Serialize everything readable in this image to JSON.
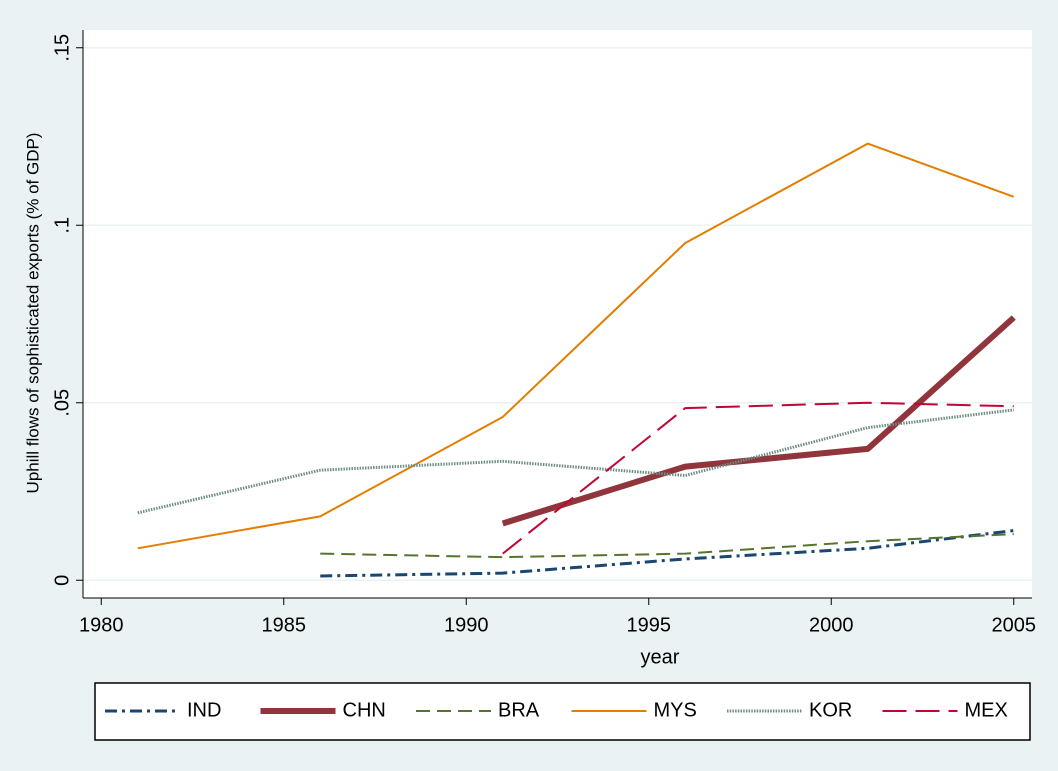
{
  "chart_data": {
    "type": "line",
    "y_label": "Uphill flows of sophisticated exports (% of GDP)",
    "x_label": "year",
    "x": [
      1981,
      1986,
      1991,
      1996,
      2001,
      2005
    ],
    "series": [
      {
        "name": "IND",
        "color": "#1a476f",
        "values": [
          null,
          0.0012,
          0.002,
          0.006,
          0.009,
          0.014
        ]
      },
      {
        "name": "CHN",
        "color": "#90353b",
        "values": [
          null,
          null,
          0.016,
          0.032,
          0.037,
          0.074
        ]
      },
      {
        "name": "BRA",
        "color": "#55752f",
        "values": [
          null,
          0.0075,
          0.0065,
          0.0075,
          0.011,
          0.013
        ]
      },
      {
        "name": "MYS",
        "color": "#e37e00",
        "values": [
          0.009,
          0.018,
          0.046,
          0.095,
          0.123,
          0.108
        ]
      },
      {
        "name": "KOR",
        "color": "#6e8e84",
        "values": [
          0.019,
          0.031,
          0.0335,
          0.0295,
          0.043,
          0.048
        ]
      },
      {
        "name": "MEX",
        "color": "#c10534",
        "values": [
          null,
          null,
          0.0075,
          0.0485,
          0.05,
          0.049
        ]
      }
    ],
    "xlim": [
      1979.5,
      2005.5
    ],
    "xticks": [
      1980,
      1985,
      1990,
      1995,
      2000,
      2005
    ],
    "ylim": [
      -0.005,
      0.155
    ],
    "yticks": [
      0,
      {
        "value": 0.05,
        "label": ".05"
      },
      {
        "value": 0.1,
        "label": ".1"
      },
      {
        "value": 0.15,
        "label": ".15"
      }
    ],
    "grid": true,
    "legend": "bottom"
  }
}
